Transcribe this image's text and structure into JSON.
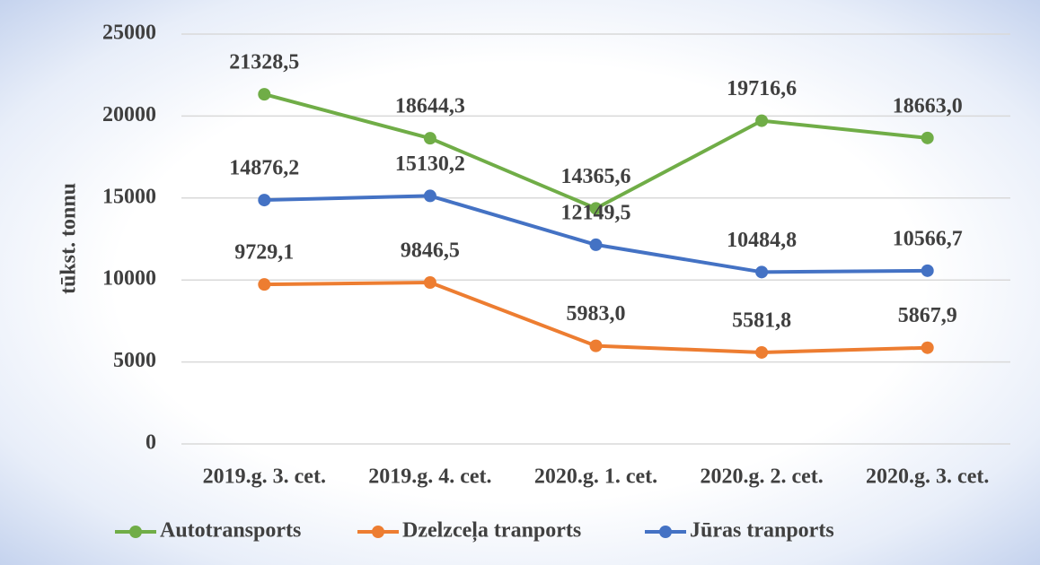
{
  "chart_data": {
    "type": "line",
    "y_label": "tūkst. tonnu",
    "categories": [
      "2019.g. 3. cet.",
      "2019.g. 4. cet.",
      "2020.g. 1. cet.",
      "2020.g. 2. cet.",
      "2020.g. 3. cet."
    ],
    "series": [
      {
        "name": "Autotransports",
        "color": "#70ad47",
        "values": [
          21328.5,
          18644.3,
          14365.6,
          19716.6,
          18663.0
        ],
        "value_labels": [
          "21328,5",
          "18644,3",
          "14365,6",
          "19716,6",
          "18663,0"
        ]
      },
      {
        "name": "Dzelzceļa tranports",
        "color": "#ed7d31",
        "values": [
          9729.1,
          9846.5,
          5983.0,
          5581.8,
          5867.9
        ],
        "value_labels": [
          "9729,1",
          "9846,5",
          "5983,0",
          "5581,8",
          "5867,9"
        ]
      },
      {
        "name": "Jūras tranports",
        "color": "#4472c4",
        "values": [
          14876.2,
          15130.2,
          12149.5,
          10484.8,
          10566.7
        ],
        "value_labels": [
          "14876,2",
          "15130,2",
          "12149,5",
          "10484,8",
          "10566,7"
        ]
      }
    ],
    "ylim": [
      0,
      25000
    ],
    "yticks": [
      0,
      5000,
      10000,
      15000,
      20000,
      25000
    ],
    "grid": true,
    "legend": "bottom"
  }
}
